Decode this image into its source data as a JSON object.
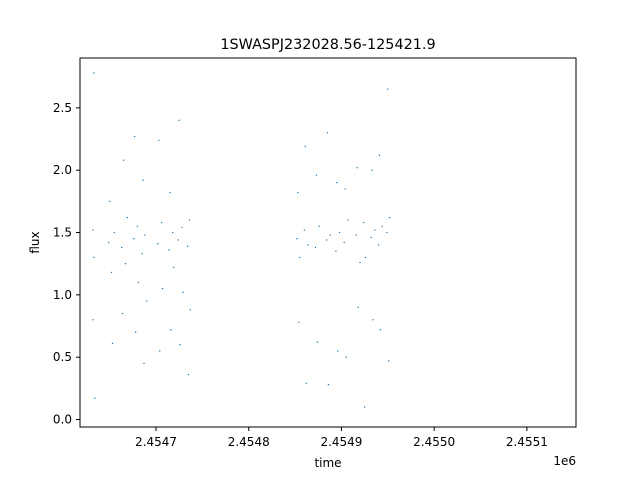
{
  "chart_data": {
    "type": "scatter",
    "title": "1SWASPJ232028.56-125421.9",
    "xlabel": "time",
    "ylabel": "flux",
    "x_offset_label": "1e6",
    "xlim": [
      2454618,
      2455153
    ],
    "ylim": [
      -0.06,
      2.9
    ],
    "xticks": [
      2454700,
      2454800,
      2454900,
      2455000,
      2455100
    ],
    "xtick_labels": [
      "2.4547",
      "2.4548",
      "2.4549",
      "2.4550",
      "2.4551"
    ],
    "yticks": [
      0.0,
      0.5,
      1.0,
      1.5,
      2.0,
      2.5
    ],
    "ytick_labels": [
      "0.0",
      "0.5",
      "1.0",
      "1.5",
      "2.0",
      "2.5"
    ],
    "grid": false,
    "marker_color": "#1f77b4",
    "series": [
      {
        "values": [
          [
            2454632,
            1.52
          ],
          [
            2454632,
            0.8
          ],
          [
            2454633,
            1.3
          ],
          [
            2454633,
            2.78
          ],
          [
            2454634,
            0.17
          ],
          [
            2454649,
            1.42
          ],
          [
            2454650,
            1.75
          ],
          [
            2454652,
            1.18
          ],
          [
            2454653,
            0.61
          ],
          [
            2454655,
            1.5
          ],
          [
            2454663,
            1.38
          ],
          [
            2454664,
            0.85
          ],
          [
            2454665,
            2.08
          ],
          [
            2454667,
            1.25
          ],
          [
            2454669,
            1.62
          ],
          [
            2454676,
            1.45
          ],
          [
            2454677,
            2.27
          ],
          [
            2454678,
            0.7
          ],
          [
            2454680,
            1.55
          ],
          [
            2454681,
            1.1
          ],
          [
            2454685,
            1.33
          ],
          [
            2454686,
            1.92
          ],
          [
            2454687,
            0.45
          ],
          [
            2454688,
            1.48
          ],
          [
            2454690,
            0.95
          ],
          [
            2454702,
            1.41
          ],
          [
            2454703,
            2.24
          ],
          [
            2454704,
            0.55
          ],
          [
            2454706,
            1.58
          ],
          [
            2454707,
            1.05
          ],
          [
            2454714,
            1.36
          ],
          [
            2454715,
            1.82
          ],
          [
            2454716,
            0.72
          ],
          [
            2454718,
            1.5
          ],
          [
            2454719,
            1.22
          ],
          [
            2454724,
            1.44
          ],
          [
            2454725,
            2.4
          ],
          [
            2454726,
            0.6
          ],
          [
            2454728,
            1.54
          ],
          [
            2454729,
            1.02
          ],
          [
            2454734,
            1.39
          ],
          [
            2454735,
            0.36
          ],
          [
            2454736,
            1.6
          ],
          [
            2454737,
            0.88
          ],
          [
            2454852,
            1.45
          ],
          [
            2454853,
            1.82
          ],
          [
            2454854,
            0.78
          ],
          [
            2454855,
            1.3
          ],
          [
            2454860,
            1.52
          ],
          [
            2454861,
            2.19
          ],
          [
            2454862,
            0.29
          ],
          [
            2454864,
            1.4
          ],
          [
            2454872,
            1.38
          ],
          [
            2454873,
            1.96
          ],
          [
            2454874,
            0.62
          ],
          [
            2454876,
            1.55
          ],
          [
            2454884,
            1.44
          ],
          [
            2454885,
            2.3
          ],
          [
            2454886,
            0.28
          ],
          [
            2454888,
            1.48
          ],
          [
            2454894,
            1.35
          ],
          [
            2454895,
            1.9
          ],
          [
            2454896,
            0.55
          ],
          [
            2454898,
            1.5
          ],
          [
            2454903,
            1.42
          ],
          [
            2454904,
            1.85
          ],
          [
            2454905,
            0.5
          ],
          [
            2454907,
            1.6
          ],
          [
            2454916,
            1.48
          ],
          [
            2454917,
            2.02
          ],
          [
            2454918,
            0.9
          ],
          [
            2454920,
            1.26
          ],
          [
            2454924,
            1.58
          ],
          [
            2454925,
            0.1
          ],
          [
            2454926,
            1.3
          ],
          [
            2454932,
            1.46
          ],
          [
            2454933,
            2.0
          ],
          [
            2454934,
            0.8
          ],
          [
            2454936,
            1.52
          ],
          [
            2454940,
            1.4
          ],
          [
            2454941,
            2.12
          ],
          [
            2454942,
            0.72
          ],
          [
            2454944,
            1.55
          ],
          [
            2454949,
            1.5
          ],
          [
            2454950,
            2.65
          ],
          [
            2454951,
            0.47
          ],
          [
            2454952,
            1.62
          ]
        ]
      }
    ]
  }
}
